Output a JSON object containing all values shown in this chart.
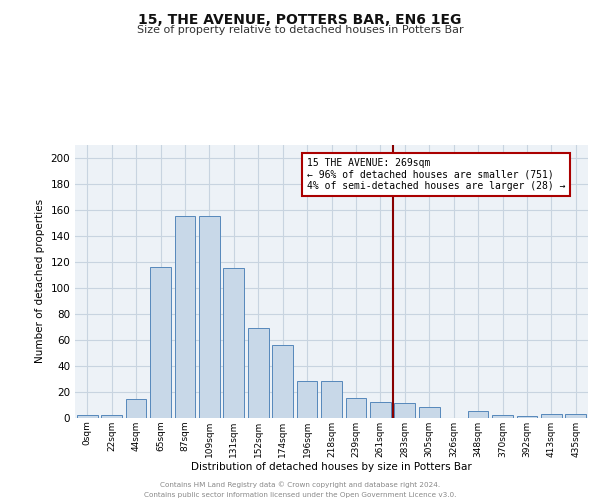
{
  "title": "15, THE AVENUE, POTTERS BAR, EN6 1EG",
  "subtitle": "Size of property relative to detached houses in Potters Bar",
  "xlabel": "Distribution of detached houses by size in Potters Bar",
  "ylabel": "Number of detached properties",
  "bar_labels": [
    "0sqm",
    "22sqm",
    "44sqm",
    "65sqm",
    "87sqm",
    "109sqm",
    "131sqm",
    "152sqm",
    "174sqm",
    "196sqm",
    "218sqm",
    "239sqm",
    "261sqm",
    "283sqm",
    "305sqm",
    "326sqm",
    "348sqm",
    "370sqm",
    "392sqm",
    "413sqm",
    "435sqm"
  ],
  "bar_heights": [
    2,
    2,
    14,
    116,
    155,
    155,
    115,
    69,
    56,
    28,
    28,
    15,
    12,
    11,
    8,
    0,
    5,
    2,
    1,
    3,
    3
  ],
  "bar_color": "#c8d8e8",
  "bar_edge_color": "#5588bb",
  "vline_x": 12.5,
  "vline_color": "#880000",
  "annotation_title": "15 THE AVENUE: 269sqm",
  "annotation_line1": "← 96% of detached houses are smaller (751)",
  "annotation_line2": "4% of semi-detached houses are larger (28) →",
  "annotation_box_color": "#aa0000",
  "ylim": [
    0,
    210
  ],
  "yticks": [
    0,
    20,
    40,
    60,
    80,
    100,
    120,
    140,
    160,
    180,
    200
  ],
  "grid_color": "#c8d4e0",
  "background_color": "#edf2f7",
  "footer_line1": "Contains HM Land Registry data © Crown copyright and database right 2024.",
  "footer_line2": "Contains public sector information licensed under the Open Government Licence v3.0."
}
